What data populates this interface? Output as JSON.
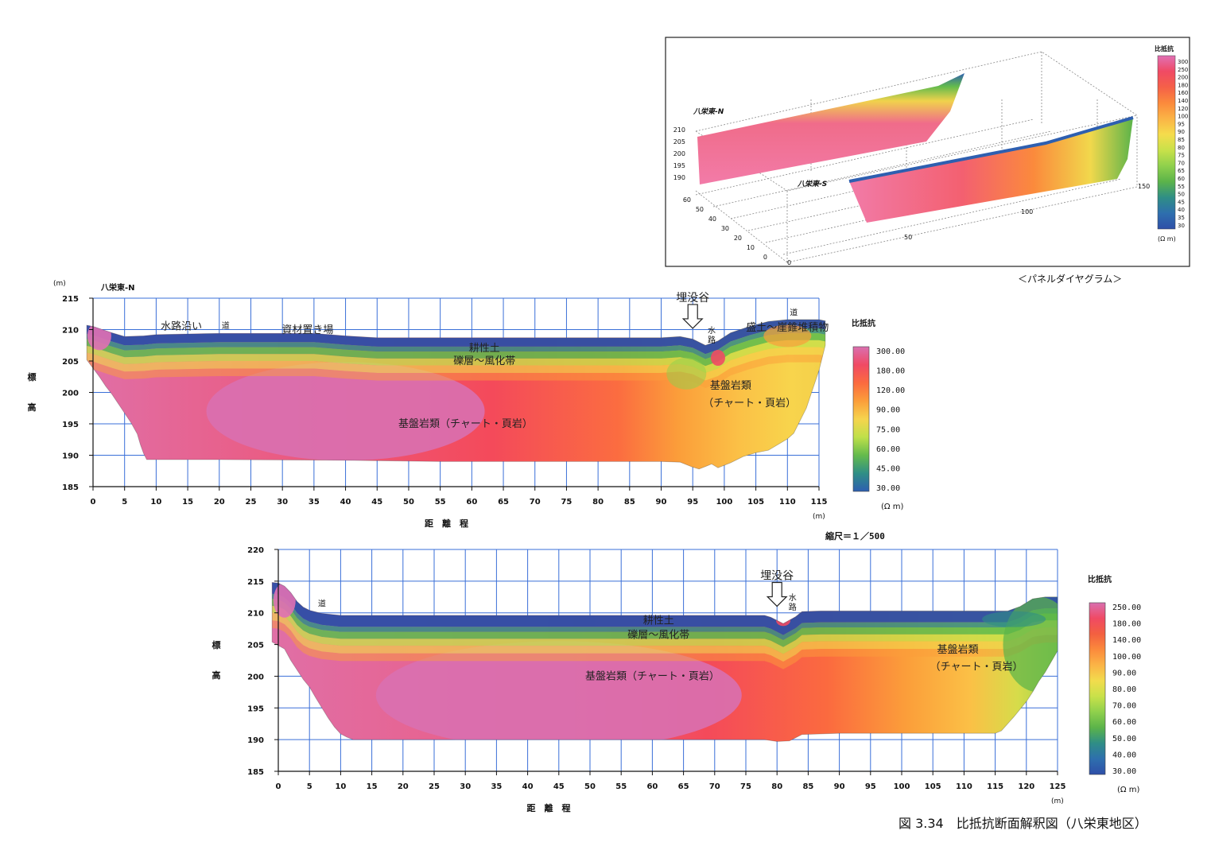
{
  "figure": {
    "caption": "図 3.34　比抵抗断面解釈図（八栄東地区）",
    "scale_note": "縮尺＝１／500",
    "panel_caption": "＜パネルダイヤグラム＞"
  },
  "chart_data": [
    {
      "type": "heatmap",
      "title": "八栄東-N",
      "xlabel": "距　離　程",
      "ylabel": "標　高",
      "x_unit": "(m)",
      "y_unit": "(m)",
      "xlim": [
        0,
        115
      ],
      "ylim": [
        185,
        215
      ],
      "x_ticks": [
        0,
        5,
        10,
        15,
        20,
        25,
        30,
        35,
        40,
        45,
        50,
        55,
        60,
        65,
        70,
        75,
        80,
        85,
        90,
        95,
        100,
        105,
        110,
        115
      ],
      "y_ticks": [
        185,
        190,
        195,
        200,
        205,
        210,
        215
      ],
      "grid": true,
      "surface": [
        [
          -1,
          210.7
        ],
        [
          0,
          210.5
        ],
        [
          3,
          209.5
        ],
        [
          5,
          208.9
        ],
        [
          8,
          209
        ],
        [
          10,
          209.2
        ],
        [
          15,
          209.3
        ],
        [
          20,
          209.4
        ],
        [
          25,
          209.4
        ],
        [
          30,
          209.4
        ],
        [
          35,
          209.4
        ],
        [
          40,
          209
        ],
        [
          45,
          208.7
        ],
        [
          50,
          208.7
        ],
        [
          60,
          208.7
        ],
        [
          70,
          208.7
        ],
        [
          80,
          208.7
        ],
        [
          90,
          208.7
        ],
        [
          93,
          208.9
        ],
        [
          95,
          208.5
        ],
        [
          97,
          207.5
        ],
        [
          99,
          208.2
        ],
        [
          101,
          209.5
        ],
        [
          104,
          210.5
        ],
        [
          107,
          211.3
        ],
        [
          110,
          211.6
        ],
        [
          113,
          211.6
        ],
        [
          115,
          211.6
        ],
        [
          116,
          211.4
        ]
      ],
      "bottom": [
        [
          -1,
          205.2
        ],
        [
          1,
          202.5
        ],
        [
          2,
          201
        ],
        [
          3,
          199.7
        ],
        [
          4,
          198.2
        ],
        [
          5,
          196.7
        ],
        [
          6,
          195.2
        ],
        [
          7,
          193.4
        ],
        [
          7.5,
          191.7
        ],
        [
          8,
          190.3
        ],
        [
          8.5,
          189.3
        ],
        [
          20,
          189.3
        ],
        [
          40,
          189.2
        ],
        [
          55,
          189
        ],
        [
          70,
          189
        ],
        [
          90,
          189
        ],
        [
          93,
          188.9
        ],
        [
          95,
          188.1
        ],
        [
          96,
          187.8
        ],
        [
          98,
          188.6
        ],
        [
          99,
          188
        ],
        [
          101,
          188.8
        ],
        [
          103,
          189.8
        ],
        [
          105,
          190.4
        ],
        [
          107,
          190.8
        ],
        [
          108.5,
          191.7
        ],
        [
          110,
          192.6
        ],
        [
          111,
          193.5
        ],
        [
          112,
          195.5
        ],
        [
          113,
          197.5
        ],
        [
          114,
          200.5
        ],
        [
          115,
          203.5
        ],
        [
          116,
          207.5
        ]
      ],
      "colorbar": {
        "title": "比抵抗",
        "unit": "(Ω m)",
        "labels": [
          "300.00",
          "180.00",
          "120.00",
          "90.00",
          "75.00",
          "60.00",
          "45.00",
          "30.00"
        ],
        "colors": [
          "#d970b0",
          "#f04a64",
          "#fb6a3f",
          "#fb9e3a",
          "#f6d44d",
          "#bfe04a",
          "#64bb4c",
          "#2f8e86",
          "#2e5fb0"
        ]
      },
      "annotations": [
        {
          "text": "埋没谷",
          "x": 95,
          "y": 214.5
        },
        {
          "text": "水路沿い",
          "x": 14,
          "y": 210
        },
        {
          "text": "道",
          "x": 21,
          "y": 210.2
        },
        {
          "text": "資材置き場",
          "x": 34,
          "y": 209.4
        },
        {
          "text": "水路",
          "x": 98,
          "y": 209.4
        },
        {
          "text": "道",
          "x": 111,
          "y": 212.3
        },
        {
          "text": "盛土～崖錐堆積物",
          "x": 110,
          "y": 209.8
        },
        {
          "text": "耕性土",
          "x": 62,
          "y": 206.5
        },
        {
          "text": "礫層～風化帯",
          "x": 62,
          "y": 204.5
        },
        {
          "text": "基盤岩類",
          "x": 101,
          "y": 200.6
        },
        {
          "text": "（チャート・頁岩）",
          "x": 104,
          "y": 197.8
        },
        {
          "text": "基盤岩類（チャート・頁岩）",
          "x": 59,
          "y": 194.5
        }
      ]
    },
    {
      "type": "heatmap",
      "title": "",
      "xlabel": "距　離　程",
      "ylabel": "標　高",
      "x_unit": "(m)",
      "y_unit": "",
      "xlim": [
        0,
        125
      ],
      "ylim": [
        185,
        220
      ],
      "x_ticks": [
        0,
        5,
        10,
        15,
        20,
        25,
        30,
        35,
        40,
        45,
        50,
        55,
        60,
        65,
        70,
        75,
        80,
        85,
        90,
        95,
        100,
        105,
        110,
        115,
        120,
        125
      ],
      "y_ticks": [
        185,
        190,
        195,
        200,
        205,
        210,
        215,
        220
      ],
      "grid": true,
      "surface": [
        [
          -1,
          214.8
        ],
        [
          0,
          214.7
        ],
        [
          1,
          214.2
        ],
        [
          2,
          213.2
        ],
        [
          3,
          211.8
        ],
        [
          4,
          210.9
        ],
        [
          5,
          210.4
        ],
        [
          7,
          209.9
        ],
        [
          10,
          209.6
        ],
        [
          20,
          209.6
        ],
        [
          40,
          209.6
        ],
        [
          60,
          209.6
        ],
        [
          70,
          209.6
        ],
        [
          75,
          209.6
        ],
        [
          78,
          209.6
        ],
        [
          79,
          209.3
        ],
        [
          81,
          208.3
        ],
        [
          83,
          209.4
        ],
        [
          84,
          210.2
        ],
        [
          87,
          210.3
        ],
        [
          100,
          210.3
        ],
        [
          110,
          210.3
        ],
        [
          117,
          210.3
        ],
        [
          119,
          211
        ],
        [
          121,
          212.2
        ],
        [
          123,
          212.5
        ],
        [
          125,
          212.5
        ]
      ],
      "bottom": [
        [
          -1,
          205.4
        ],
        [
          1,
          204.3
        ],
        [
          2,
          202.5
        ],
        [
          3,
          201
        ],
        [
          4,
          199.5
        ],
        [
          5,
          198.3
        ],
        [
          6,
          196.6
        ],
        [
          7,
          195
        ],
        [
          8,
          193.4
        ],
        [
          9,
          192
        ],
        [
          10,
          190.9
        ],
        [
          11,
          190.4
        ],
        [
          12,
          190
        ],
        [
          20,
          190
        ],
        [
          40,
          190
        ],
        [
          60,
          190
        ],
        [
          70,
          190
        ],
        [
          78,
          190
        ],
        [
          80,
          189.7
        ],
        [
          82,
          189.8
        ],
        [
          84,
          190.8
        ],
        [
          90,
          191
        ],
        [
          100,
          191
        ],
        [
          110,
          191
        ],
        [
          115,
          191
        ],
        [
          116,
          191.4
        ],
        [
          117,
          192.5
        ],
        [
          118,
          193.6
        ],
        [
          119,
          194.8
        ],
        [
          120,
          196
        ],
        [
          121,
          197.5
        ],
        [
          122,
          199.2
        ],
        [
          123,
          200.6
        ],
        [
          124,
          202.3
        ],
        [
          125,
          204
        ]
      ],
      "colorbar": {
        "title": "比抵抗",
        "unit": "(Ω m)",
        "labels": [
          "250.00",
          "180.00",
          "140.00",
          "100.00",
          "90.00",
          "80.00",
          "70.00",
          "60.00",
          "50.00",
          "40.00",
          "30.00"
        ],
        "colors": [
          "#d970b0",
          "#f04a64",
          "#f36040",
          "#fb8a3c",
          "#fbb446",
          "#f2dc4d",
          "#c8e14a",
          "#8fd04c",
          "#5bb34a",
          "#2f8e86",
          "#2e6fae",
          "#2e4fa8"
        ]
      },
      "annotations": [
        {
          "text": "道",
          "x": 7,
          "y": 211
        },
        {
          "text": "埋没谷",
          "x": 80,
          "y": 215.3
        },
        {
          "text": "水路",
          "x": 82.5,
          "y": 212
        },
        {
          "text": "耕性土",
          "x": 61,
          "y": 208.3
        },
        {
          "text": "礫層～風化帯",
          "x": 61,
          "y": 206
        },
        {
          "text": "基盤岩類（チャート・頁岩）",
          "x": 60,
          "y": 199.5
        },
        {
          "text": "基盤岩類",
          "x": 109,
          "y": 203.7
        },
        {
          "text": "（チャート・頁岩）",
          "x": 112,
          "y": 201
        }
      ]
    },
    {
      "type": "heatmap",
      "title": "＜パネルダイヤグラム＞",
      "series": [
        {
          "name": "八栄東-N"
        },
        {
          "name": "八栄東-S"
        }
      ],
      "z_ticks": [
        190,
        195,
        200,
        205,
        210
      ],
      "y_ticks": [
        0,
        10,
        20,
        30,
        40,
        50,
        60
      ],
      "x_ticks": [
        0,
        50,
        100,
        150
      ],
      "colorbar": {
        "title": "比抵抗",
        "unit": "(Ω m)",
        "labels": [
          "300",
          "250",
          "200",
          "180",
          "160",
          "140",
          "120",
          "100",
          "95",
          "90",
          "85",
          "80",
          "75",
          "70",
          "65",
          "60",
          "55",
          "50",
          "45",
          "40",
          "35",
          "30"
        ],
        "colors": [
          "#e070b4",
          "#f04a64",
          "#f56048",
          "#fb8a3c",
          "#fbb446",
          "#f5dc4c",
          "#c8e14a",
          "#8fd04c",
          "#5bb34a",
          "#2f8e86",
          "#2e6fae",
          "#2e4fa8"
        ]
      }
    }
  ]
}
